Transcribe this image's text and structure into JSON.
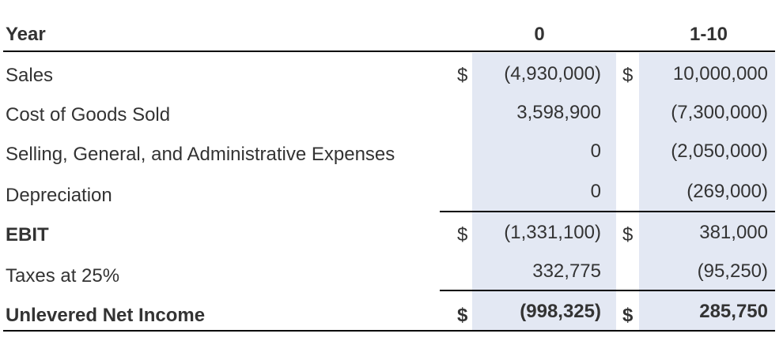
{
  "table": {
    "header": {
      "row_label": "Year",
      "col0": "0",
      "col1": "1-10"
    },
    "rows": [
      {
        "label": "Sales",
        "cur0": "$",
        "v0": "(4,930,000)",
        "cur1": "$",
        "v1": "10,000,000",
        "bold": false
      },
      {
        "label": "Cost of Goods Sold",
        "cur0": "",
        "v0": "3,598,900",
        "cur1": "",
        "v1": "(7,300,000)",
        "bold": false
      },
      {
        "label": "Selling, General, and Administrative Expenses",
        "cur0": "",
        "v0": "0",
        "cur1": "",
        "v1": "(2,050,000)",
        "bold": false
      },
      {
        "label": "Depreciation",
        "cur0": "",
        "v0": "0",
        "cur1": "",
        "v1": "(269,000)",
        "bold": false
      },
      {
        "label": "EBIT",
        "cur0": "$",
        "v0": "(1,331,100)",
        "cur1": "$",
        "v1": "381,000",
        "bold": true
      },
      {
        "label": "Taxes at 25%",
        "cur0": "",
        "v0": "332,775",
        "cur1": "",
        "v1": "(95,250)",
        "bold": false
      },
      {
        "label": "Unlevered Net Income",
        "cur0": "$",
        "v0": "(998,325)",
        "cur1": "$",
        "v1": "285,750",
        "bold": true
      }
    ]
  }
}
